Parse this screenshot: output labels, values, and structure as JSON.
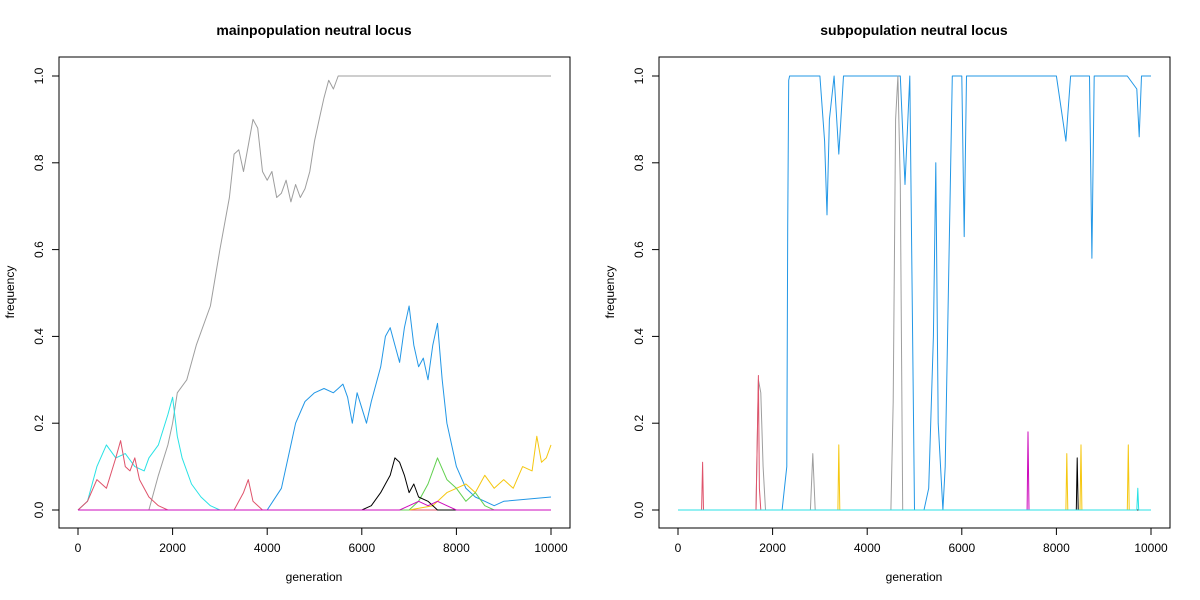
{
  "chart_data": [
    {
      "type": "line",
      "title": "mainpopulation neutral locus",
      "xlabel": "generation",
      "ylabel": "frequency",
      "xlim": [
        0,
        10000
      ],
      "ylim": [
        0,
        1
      ],
      "xticks": [
        "0",
        "2000",
        "4000",
        "6000",
        "8000",
        "10000"
      ],
      "yticks": [
        "0.0",
        "0.2",
        "0.4",
        "0.6",
        "0.8",
        "1.0"
      ],
      "grid": false,
      "series": [
        {
          "color": "#9E9E9E",
          "x": [
            0,
            1500,
            1700,
            1900,
            2000,
            2100,
            2300,
            2500,
            2800,
            3000,
            3200,
            3300,
            3400,
            3500,
            3600,
            3700,
            3800,
            3900,
            4000,
            4100,
            4200,
            4300,
            4400,
            4500,
            4600,
            4700,
            4800,
            4900,
            5000,
            5100,
            5200,
            5300,
            5400,
            5500,
            5600,
            5700,
            5800,
            6000,
            8000,
            10000
          ],
          "y": [
            0,
            0,
            0.08,
            0.15,
            0.2,
            0.27,
            0.3,
            0.38,
            0.47,
            0.6,
            0.72,
            0.82,
            0.83,
            0.78,
            0.84,
            0.9,
            0.88,
            0.78,
            0.76,
            0.78,
            0.72,
            0.73,
            0.76,
            0.71,
            0.75,
            0.72,
            0.74,
            0.78,
            0.85,
            0.9,
            0.95,
            0.99,
            0.97,
            1.0,
            1.0,
            1.0,
            1.0,
            1.0,
            1.0,
            1.0
          ]
        },
        {
          "color": "#2297E6",
          "x": [
            0,
            3500,
            4000,
            4300,
            4500,
            4600,
            4800,
            5000,
            5200,
            5400,
            5500,
            5600,
            5700,
            5800,
            5900,
            6100,
            6200,
            6400,
            6500,
            6600,
            6700,
            6800,
            6900,
            7000,
            7100,
            7200,
            7300,
            7400,
            7500,
            7600,
            7700,
            7800,
            8000,
            8200,
            8400,
            8600,
            8800,
            9000,
            10000
          ],
          "y": [
            0,
            0,
            0,
            0.05,
            0.15,
            0.2,
            0.25,
            0.27,
            0.28,
            0.27,
            0.28,
            0.29,
            0.26,
            0.2,
            0.27,
            0.2,
            0.25,
            0.33,
            0.4,
            0.42,
            0.38,
            0.34,
            0.42,
            0.47,
            0.38,
            0.33,
            0.35,
            0.3,
            0.38,
            0.43,
            0.3,
            0.2,
            0.1,
            0.05,
            0.03,
            0.02,
            0.01,
            0.02,
            0.03
          ]
        },
        {
          "color": "#28E2E5",
          "x": [
            0,
            200,
            400,
            600,
            800,
            1000,
            1200,
            1400,
            1500,
            1700,
            1900,
            2000,
            2100,
            2200,
            2400,
            2600,
            2800,
            3000,
            10000
          ],
          "y": [
            0,
            0.02,
            0.1,
            0.15,
            0.12,
            0.13,
            0.1,
            0.09,
            0.12,
            0.15,
            0.22,
            0.26,
            0.17,
            0.12,
            0.06,
            0.03,
            0.01,
            0,
            0
          ]
        },
        {
          "color": "#DF536B",
          "x": [
            0,
            200,
            400,
            600,
            800,
            900,
            1000,
            1100,
            1200,
            1300,
            1500,
            1700,
            1900,
            2100,
            3300,
            3500,
            3600,
            3700,
            3900,
            10000
          ],
          "y": [
            0,
            0.02,
            0.07,
            0.05,
            0.12,
            0.16,
            0.1,
            0.09,
            0.12,
            0.07,
            0.03,
            0.01,
            0,
            0,
            0,
            0.04,
            0.07,
            0.02,
            0,
            0
          ]
        },
        {
          "color": "#F5C710",
          "x": [
            0,
            7000,
            7500,
            7800,
            8000,
            8200,
            8400,
            8600,
            8800,
            9000,
            9200,
            9400,
            9600,
            9700,
            9800,
            9900,
            10000
          ],
          "y": [
            0,
            0,
            0.01,
            0.04,
            0.05,
            0.06,
            0.04,
            0.08,
            0.05,
            0.07,
            0.05,
            0.1,
            0.09,
            0.17,
            0.11,
            0.12,
            0.15
          ]
        },
        {
          "color": "#61D04F",
          "x": [
            0,
            7000,
            7200,
            7400,
            7500,
            7600,
            7800,
            8000,
            8200,
            8400,
            8600,
            8800,
            10000
          ],
          "y": [
            0,
            0,
            0.02,
            0.06,
            0.09,
            0.12,
            0.07,
            0.05,
            0.02,
            0.04,
            0.01,
            0,
            0
          ]
        },
        {
          "color": "#000000",
          "x": [
            0,
            6000,
            6200,
            6400,
            6500,
            6600,
            6700,
            6800,
            6900,
            7000,
            7100,
            7200,
            7400,
            7600,
            10000
          ],
          "y": [
            0,
            0,
            0.01,
            0.04,
            0.06,
            0.08,
            0.12,
            0.11,
            0.08,
            0.04,
            0.06,
            0.03,
            0.02,
            0,
            0
          ]
        },
        {
          "color": "#CD0BBC",
          "x": [
            0,
            6800,
            7000,
            7200,
            7400,
            7600,
            7800,
            8000,
            10000
          ],
          "y": [
            0,
            0,
            0.01,
            0.02,
            0.01,
            0.02,
            0.01,
            0,
            0
          ]
        }
      ]
    },
    {
      "type": "line",
      "title": "subpopulation neutral locus",
      "xlabel": "generation",
      "ylabel": "frequency",
      "xlim": [
        0,
        10000
      ],
      "ylim": [
        0,
        1
      ],
      "xticks": [
        "0",
        "2000",
        "4000",
        "6000",
        "8000",
        "10000"
      ],
      "yticks": [
        "0.0",
        "0.2",
        "0.4",
        "0.6",
        "0.8",
        "1.0"
      ],
      "grid": false,
      "series": [
        {
          "color": "#2297E6",
          "x": [
            0,
            2200,
            2300,
            2320,
            2340,
            2360,
            2400,
            3000,
            3100,
            3150,
            3200,
            3300,
            3400,
            3500,
            4000,
            4400,
            4500,
            4700,
            4800,
            4900,
            5000,
            5200,
            5300,
            5400,
            5450,
            5500,
            5600,
            5650,
            5800,
            6000,
            6050,
            6100,
            6500,
            7000,
            7500,
            8000,
            8200,
            8300,
            8400,
            8700,
            8750,
            8800,
            9000,
            9500,
            9700,
            9750,
            9800,
            10000
          ],
          "y": [
            0,
            0,
            0.1,
            0.65,
            0.99,
            1.0,
            1.0,
            1.0,
            0.85,
            0.68,
            0.9,
            1.0,
            0.82,
            1.0,
            1.0,
            1.0,
            1.0,
            1.0,
            0.75,
            1.0,
            0,
            0,
            0.05,
            0.4,
            0.8,
            0.2,
            0,
            0.1,
            1.0,
            1.0,
            0.63,
            1.0,
            1.0,
            1.0,
            1.0,
            1.0,
            0.85,
            1.0,
            1.0,
            1.0,
            0.58,
            1.0,
            1.0,
            1.0,
            0.97,
            0.86,
            1.0,
            1.0
          ]
        },
        {
          "color": "#9E9E9E",
          "x": [
            0,
            1650,
            1700,
            1750,
            1800,
            1850,
            2800,
            2850,
            2900,
            4500,
            4550,
            4600,
            4650,
            4700,
            4750,
            10000
          ],
          "y": [
            0,
            0,
            0.3,
            0.27,
            0.1,
            0,
            0,
            0.13,
            0,
            0,
            0.25,
            0.9,
            1.0,
            0.75,
            0,
            0
          ]
        },
        {
          "color": "#DF536B",
          "x": [
            0,
            500,
            520,
            540,
            1650,
            1700,
            1720,
            1750,
            10000
          ],
          "y": [
            0,
            0,
            0.11,
            0,
            0,
            0.31,
            0.05,
            0,
            0
          ]
        },
        {
          "color": "#F5C710",
          "x": [
            0,
            3380,
            3400,
            3420,
            8200,
            8220,
            8240,
            8500,
            8520,
            8540,
            9500,
            9520,
            9540,
            10000
          ],
          "y": [
            0,
            0,
            0.15,
            0,
            0,
            0.13,
            0,
            0,
            0.15,
            0,
            0,
            0.15,
            0,
            0
          ]
        },
        {
          "color": "#CD0BBC",
          "x": [
            0,
            7380,
            7400,
            7420,
            10000
          ],
          "y": [
            0,
            0,
            0.18,
            0,
            0
          ]
        },
        {
          "color": "#000000",
          "x": [
            0,
            8420,
            8440,
            8460,
            10000
          ],
          "y": [
            0,
            0,
            0.12,
            0,
            0
          ]
        },
        {
          "color": "#28E2E5",
          "x": [
            0,
            9700,
            9720,
            9740,
            10000
          ],
          "y": [
            0,
            0,
            0.05,
            0,
            0
          ]
        }
      ]
    }
  ]
}
